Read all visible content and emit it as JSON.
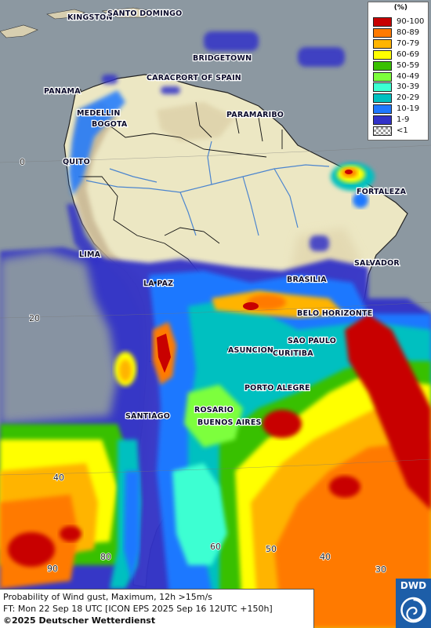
{
  "map": {
    "legend": {
      "unit": "(%)",
      "items": [
        {
          "label": "90-100",
          "color": "#c80000"
        },
        {
          "label": "80-89",
          "color": "#ff7a00"
        },
        {
          "label": "70-79",
          "color": "#ffb400"
        },
        {
          "label": "60-69",
          "color": "#ffff00"
        },
        {
          "label": "50-59",
          "color": "#39c000"
        },
        {
          "label": "40-49",
          "color": "#7dff3c"
        },
        {
          "label": "30-39",
          "color": "#3cffd2"
        },
        {
          "label": "20-29",
          "color": "#00c0c0"
        },
        {
          "label": "10-19",
          "color": "#1e78ff"
        },
        {
          "label": "1-9",
          "color": "#3232c8"
        },
        {
          "label": "<1",
          "color": "checker"
        }
      ]
    },
    "cities": {
      "kingston": "KINGSTON",
      "santo_domingo": "SANTO DOMINGO",
      "bridgetown": "BRIDGETOWN",
      "caracas": "CARACAS",
      "port_of_spain": "PORT OF SPAIN",
      "panama": "PANAMA",
      "medellin": "MEDELLIN",
      "bogota": "BOGOTA",
      "paramaribo": "PARAMARIBO",
      "quito": "QUITO",
      "fortaleza": "FORTALEZA",
      "lima": "LIMA",
      "salvador": "SALVADOR",
      "brasilia": "BRASILIA",
      "la_paz": "LA PAZ",
      "belo_horizonte": "BELO HORIZONTE",
      "sao_paulo": "SAO PAULO",
      "asuncion": "ASUNCION",
      "curitiba": "CURITIBA",
      "porto_alegre": "PORTO ALEGRE",
      "rosario": "ROSARIO",
      "santiago": "SANTIAGO",
      "buenos_aires": "BUENOS AIRES"
    },
    "grid_labels": {
      "lat_0": "0",
      "lat_20": "20",
      "lat_40": "40",
      "lon_80": "80",
      "lon_60": "60",
      "lon_50": "50",
      "lon_40": "40",
      "lon_30": "30",
      "lon_90": "90"
    }
  },
  "info": {
    "line1": "Probability of Wind gust, Maximum, 12h >15m/s",
    "line2": "FT: Mon 22 Sep 18 UTC [ICON EPS 2025 Sep 16 12UTC +150h]",
    "line3": "©2025 Deutscher Wetterdienst"
  },
  "logo": {
    "text": "DWD"
  }
}
